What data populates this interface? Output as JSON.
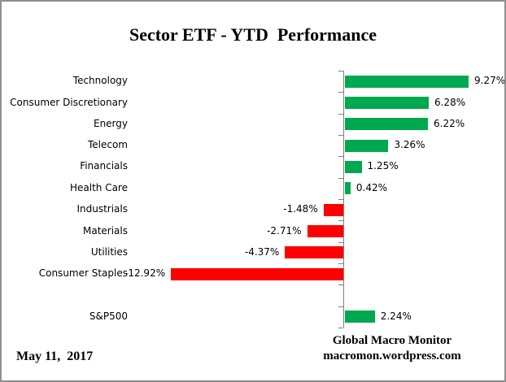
{
  "title": "Sector ETF - YTD  Performance",
  "footer": {
    "date": "May 11,  2017",
    "credit_line1": "Global Macro Monitor",
    "credit_line2": "macromon.wordpress.com"
  },
  "colors": {
    "positive_bar": "#00A84F",
    "negative_bar": "#FF0000",
    "axis": "#808080",
    "frame_border": "#8F8F8F"
  },
  "chart_data": {
    "type": "bar",
    "orientation": "horizontal",
    "title": "Sector ETF - YTD  Performance",
    "xlabel": "",
    "ylabel": "",
    "xlim": [
      -13.5,
      12
    ],
    "grid": false,
    "legend": false,
    "categories": [
      "Technology",
      "Consumer Discretionary",
      "Energy",
      "Telecom",
      "Financials",
      "Health Care",
      "Industrials",
      "Materials",
      "Utilities",
      "Consumer Staples",
      "",
      "S&P500"
    ],
    "values": [
      9.27,
      6.28,
      6.22,
      3.26,
      1.25,
      0.42,
      -1.48,
      -2.71,
      -4.37,
      -12.92,
      null,
      2.24
    ],
    "value_labels": [
      "9.27%",
      "6.28%",
      "6.22%",
      "3.26%",
      "1.25%",
      "0.42%",
      "-1.48%",
      "-2.71%",
      "-4.37%",
      "-12.92%",
      "",
      "2.24%"
    ]
  }
}
